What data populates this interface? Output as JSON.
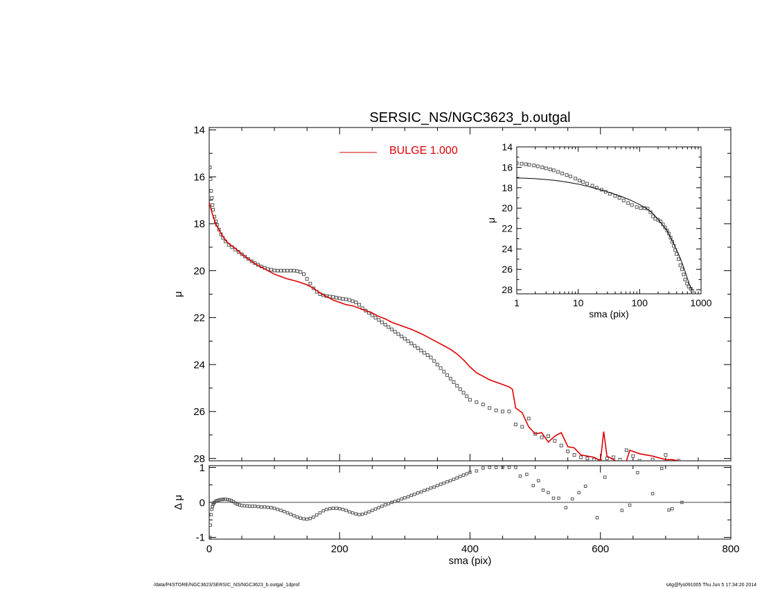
{
  "footer": {
    "left": "/data/P4STORE/NGC3623/SERSIC_NS/NGC3623_b.outgal_1dprof",
    "right": "s4g@fys091005  Thu Jun  5 17:34:20 2014"
  },
  "colors": {
    "model": "#dd0000",
    "data": "#555555",
    "axes": "#000000"
  },
  "chart_data": [
    {
      "id": "main-profile",
      "type": "scatter",
      "title": "SERSIC_NS/NGC3623_b.outgal",
      "xlabel": "",
      "ylabel": "μ",
      "xlim": [
        0,
        800
      ],
      "ylim": [
        28.1,
        13.9
      ],
      "yreversed": true,
      "xticks": [
        0,
        200,
        400,
        600,
        800
      ],
      "yticks": [
        14,
        16,
        18,
        20,
        22,
        24,
        26,
        28
      ],
      "legend": {
        "label": "BULGE  1.000",
        "placement": "top-center"
      },
      "series": [
        {
          "name": "BULGE  1.000",
          "kind": "line",
          "x": [
            0,
            5,
            10,
            15,
            20,
            25,
            30,
            40,
            50,
            60,
            70,
            80,
            90,
            100,
            110,
            120,
            130,
            140,
            150,
            160,
            170,
            180,
            190,
            200,
            210,
            220,
            230,
            240,
            250,
            260,
            270,
            280,
            290,
            300,
            310,
            320,
            330,
            340,
            350,
            360,
            370,
            380,
            390,
            400,
            410,
            420,
            430,
            440,
            450,
            460,
            465,
            470,
            480,
            490,
            495,
            500,
            510,
            520,
            530,
            540,
            550,
            560,
            570,
            580,
            590,
            600,
            605,
            610,
            620,
            630,
            640,
            645,
            660,
            680,
            700,
            710,
            720
          ],
          "y": [
            17.1,
            17.6,
            18.0,
            18.25,
            18.5,
            18.7,
            18.85,
            19.05,
            19.3,
            19.5,
            19.7,
            19.85,
            20.0,
            20.15,
            20.25,
            20.35,
            20.42,
            20.5,
            20.6,
            20.75,
            20.95,
            21.1,
            21.25,
            21.35,
            21.45,
            21.5,
            21.6,
            21.7,
            21.8,
            21.95,
            22.05,
            22.2,
            22.3,
            22.4,
            22.5,
            22.62,
            22.75,
            22.9,
            23.05,
            23.2,
            23.35,
            23.55,
            23.8,
            24.1,
            24.35,
            24.5,
            24.65,
            24.75,
            24.85,
            24.95,
            25.05,
            25.85,
            26.05,
            26.65,
            26.8,
            26.95,
            26.9,
            27.3,
            27.05,
            26.9,
            27.5,
            27.55,
            27.85,
            27.9,
            27.95,
            28.1,
            26.85,
            27.9,
            28.05,
            28.2,
            28.1,
            27.65,
            27.8,
            27.9,
            28.05,
            28.05,
            28.1
          ]
        },
        {
          "name": "",
          "kind": "markers",
          "x": [
            1,
            2,
            3,
            4,
            5,
            6,
            8,
            10,
            12,
            15,
            18,
            21,
            25,
            30,
            35,
            40,
            45,
            50,
            55,
            60,
            65,
            70,
            75,
            80,
            85,
            90,
            95,
            100,
            105,
            110,
            115,
            120,
            125,
            130,
            135,
            140,
            145,
            150,
            155,
            160,
            165,
            170,
            175,
            180,
            185,
            190,
            195,
            200,
            205,
            210,
            215,
            220,
            225,
            230,
            235,
            240,
            245,
            250,
            255,
            260,
            265,
            270,
            275,
            280,
            285,
            290,
            295,
            300,
            305,
            310,
            315,
            320,
            325,
            330,
            335,
            340,
            345,
            350,
            355,
            360,
            365,
            370,
            375,
            380,
            385,
            390,
            395,
            400,
            410,
            420,
            430,
            440,
            450,
            460,
            470,
            480,
            490,
            500,
            510,
            520,
            530,
            540,
            550,
            560,
            570,
            580,
            590,
            600,
            610,
            620,
            630,
            640,
            650,
            660,
            680,
            700,
            720
          ],
          "y": [
            15.6,
            16.1,
            16.6,
            16.9,
            17.2,
            17.4,
            17.7,
            17.9,
            18.05,
            18.25,
            18.45,
            18.6,
            18.75,
            18.9,
            19.0,
            19.1,
            19.2,
            19.3,
            19.4,
            19.5,
            19.6,
            19.68,
            19.75,
            19.82,
            19.88,
            19.93,
            19.96,
            19.99,
            20.0,
            20.0,
            20.0,
            20.0,
            20.0,
            20.0,
            20.02,
            20.05,
            20.15,
            20.35,
            20.55,
            20.75,
            20.9,
            21.0,
            21.05,
            21.08,
            21.1,
            21.12,
            21.15,
            21.18,
            21.2,
            21.22,
            21.25,
            21.3,
            21.35,
            21.45,
            21.6,
            21.7,
            21.8,
            21.9,
            22.0,
            22.1,
            22.2,
            22.3,
            22.4,
            22.5,
            22.6,
            22.7,
            22.8,
            22.9,
            23.0,
            23.1,
            23.2,
            23.3,
            23.4,
            23.5,
            23.6,
            23.7,
            23.85,
            24.0,
            24.15,
            24.3,
            24.45,
            24.6,
            24.75,
            24.9,
            25.05,
            25.2,
            25.35,
            25.5,
            25.6,
            25.7,
            25.85,
            25.95,
            26.0,
            26.0,
            26.55,
            26.65,
            26.3,
            26.95,
            27.1,
            27.05,
            27.25,
            27.45,
            27.7,
            27.85,
            27.95,
            28.0,
            28.05,
            28.1,
            28.0,
            27.95,
            28.05,
            27.65,
            27.9,
            28.1,
            28.05,
            27.85,
            28.1
          ]
        }
      ]
    },
    {
      "id": "residual",
      "type": "scatter",
      "title": "",
      "xlabel": "sma (pix)",
      "ylabel": "Δ μ",
      "xlim": [
        0,
        800
      ],
      "ylim": [
        -1.05,
        1.05
      ],
      "xticks": [
        0,
        200,
        400,
        600,
        800
      ],
      "yticks": [
        -1,
        0,
        1
      ],
      "reference_line": 0,
      "series": [
        {
          "name": "",
          "kind": "markers",
          "x": [
            1,
            2,
            3,
            4,
            5,
            6,
            7,
            8,
            10,
            12,
            14,
            16,
            18,
            20,
            22,
            25,
            28,
            31,
            34,
            37,
            40,
            43,
            46,
            50,
            54,
            58,
            62,
            66,
            70,
            75,
            80,
            85,
            90,
            95,
            100,
            105,
            110,
            115,
            120,
            125,
            130,
            135,
            140,
            145,
            150,
            155,
            160,
            165,
            170,
            175,
            180,
            185,
            190,
            195,
            200,
            205,
            210,
            215,
            220,
            225,
            230,
            235,
            240,
            245,
            250,
            255,
            260,
            265,
            270,
            275,
            280,
            285,
            290,
            295,
            300,
            305,
            310,
            315,
            320,
            325,
            330,
            335,
            340,
            345,
            350,
            355,
            360,
            365,
            370,
            375,
            380,
            385,
            390,
            395,
            400,
            410,
            420,
            430,
            440,
            450,
            460,
            470,
            477,
            487,
            497,
            505,
            512,
            520,
            528,
            536,
            547,
            557,
            567,
            577,
            595,
            607,
            633,
            645,
            657,
            680,
            694,
            705,
            710,
            725
          ],
          "y": [
            -1.0,
            -0.65,
            -0.35,
            -0.2,
            -0.12,
            -0.06,
            -0.02,
            0.0,
            0.03,
            0.05,
            0.06,
            0.07,
            0.08,
            0.08,
            0.09,
            0.09,
            0.08,
            0.07,
            0.05,
            0.02,
            -0.02,
            -0.05,
            -0.07,
            -0.09,
            -0.1,
            -0.1,
            -0.11,
            -0.11,
            -0.11,
            -0.12,
            -0.13,
            -0.13,
            -0.14,
            -0.15,
            -0.17,
            -0.2,
            -0.23,
            -0.26,
            -0.3,
            -0.34,
            -0.38,
            -0.42,
            -0.45,
            -0.47,
            -0.48,
            -0.46,
            -0.42,
            -0.36,
            -0.3,
            -0.24,
            -0.2,
            -0.18,
            -0.17,
            -0.17,
            -0.18,
            -0.2,
            -0.23,
            -0.27,
            -0.3,
            -0.33,
            -0.35,
            -0.34,
            -0.31,
            -0.27,
            -0.23,
            -0.19,
            -0.15,
            -0.11,
            -0.07,
            -0.04,
            0.0,
            0.03,
            0.06,
            0.1,
            0.13,
            0.16,
            0.2,
            0.23,
            0.27,
            0.3,
            0.34,
            0.37,
            0.41,
            0.44,
            0.48,
            0.52,
            0.55,
            0.59,
            0.62,
            0.66,
            0.7,
            0.74,
            0.78,
            0.82,
            0.86,
            0.9,
            0.98,
            1.0,
            1.0,
            1.0,
            1.0,
            1.0,
            0.75,
            0.8,
            0.48,
            0.62,
            0.35,
            0.28,
            0.12,
            0.12,
            -0.15,
            0.1,
            0.28,
            0.46,
            -0.44,
            0.72,
            -0.23,
            -0.08,
            0.85,
            0.25,
            0.97,
            -0.22,
            -0.18,
            0.0
          ]
        }
      ]
    },
    {
      "id": "inset-log",
      "type": "scatter",
      "title": "",
      "xlabel": "sma (pix)",
      "ylabel": "μ",
      "xscale": "log",
      "xlim": [
        1,
        1000
      ],
      "ylim": [
        28.4,
        14.0
      ],
      "yreversed": true,
      "xticks": [
        1,
        10,
        100,
        1000
      ],
      "yticks": [
        14,
        16,
        18,
        20,
        22,
        24,
        26,
        28
      ],
      "series": [
        {
          "name": "",
          "kind": "markers",
          "x": [
            1,
            1.2,
            1.4,
            1.6,
            1.9,
            2.2,
            2.6,
            3,
            3.5,
            4,
            4.7,
            5.5,
            6.5,
            7.5,
            9,
            10.5,
            12,
            14,
            17,
            20,
            24,
            28,
            33,
            40,
            47,
            55,
            65,
            75,
            90,
            105,
            120,
            135,
            150,
            165,
            180,
            200,
            220,
            240,
            260,
            280,
            300,
            320,
            340,
            360,
            380,
            400,
            430,
            460,
            490,
            520,
            550,
            590,
            630,
            680,
            720
          ],
          "y": [
            15.6,
            15.65,
            15.7,
            15.75,
            15.82,
            15.9,
            16.0,
            16.1,
            16.2,
            16.3,
            16.45,
            16.6,
            16.75,
            16.9,
            17.1,
            17.3,
            17.45,
            17.6,
            17.8,
            18.0,
            18.2,
            18.4,
            18.6,
            18.8,
            19.0,
            19.25,
            19.5,
            19.7,
            19.9,
            20.0,
            20.0,
            20.05,
            20.4,
            20.8,
            21.05,
            21.15,
            21.3,
            21.6,
            21.9,
            22.2,
            22.5,
            22.9,
            23.3,
            23.7,
            24.1,
            24.5,
            25.0,
            25.6,
            26.0,
            26.5,
            27.0,
            27.4,
            27.7,
            27.9,
            28.1
          ]
        },
        {
          "name": "",
          "kind": "line",
          "x": [
            1,
            1.5,
            2,
            3,
            4,
            5,
            7,
            10,
            15,
            20,
            30,
            40,
            50,
            70,
            100,
            130,
            160,
            200,
            240,
            280,
            320,
            360,
            400,
            450,
            500,
            550,
            600,
            650,
            720
          ],
          "y": [
            17.05,
            17.08,
            17.12,
            17.2,
            17.27,
            17.35,
            17.48,
            17.65,
            17.9,
            18.1,
            18.4,
            18.65,
            18.85,
            19.2,
            19.65,
            20.05,
            20.45,
            21.1,
            21.7,
            22.2,
            22.9,
            23.5,
            24.1,
            24.8,
            25.5,
            26.2,
            26.9,
            27.5,
            28.1
          ]
        }
      ]
    }
  ]
}
